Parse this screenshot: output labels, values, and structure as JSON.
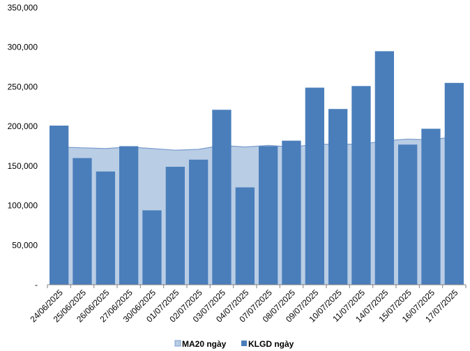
{
  "chart_data": {
    "type": "bar",
    "categories": [
      "24/06/2025",
      "25/06/2025",
      "26/06/2025",
      "27/06/2025",
      "30/06/2025",
      "01/07/2025",
      "02/07/2025",
      "03/07/2025",
      "04/07/2025",
      "07/07/2025",
      "08/07/2025",
      "09/07/2025",
      "10/07/2025",
      "11/07/2025",
      "14/07/2025",
      "15/07/2025",
      "16/07/2025",
      "17/07/2025"
    ],
    "series": [
      {
        "name": "KLGD ngày",
        "kind": "bar",
        "color": "#4a7ebb",
        "values": [
          201000,
          160000,
          143000,
          175000,
          94000,
          149000,
          158000,
          221000,
          123000,
          175000,
          182000,
          249000,
          222000,
          251000,
          295000,
          177000,
          197000,
          255000
        ]
      },
      {
        "name": "MA20 ngày",
        "kind": "area",
        "color": "#b9cde5",
        "line_color": "#7a9ccc",
        "values": [
          174000,
          173000,
          172000,
          174000,
          172000,
          170000,
          171000,
          176000,
          174000,
          176000,
          174000,
          177000,
          178000,
          177000,
          182000,
          184000,
          183000,
          187000
        ]
      }
    ],
    "y_tick_labels": [
      "-",
      "50,000",
      "100,000",
      "150,000",
      "200,000",
      "250,000",
      "300,000",
      "350,000"
    ],
    "y_tick_values": [
      0,
      50000,
      100000,
      150000,
      200000,
      250000,
      300000,
      350000
    ],
    "ylim": [
      0,
      350000
    ],
    "title": "",
    "xlabel": "",
    "ylabel": "",
    "grid": false,
    "legend_position": "bottom"
  }
}
